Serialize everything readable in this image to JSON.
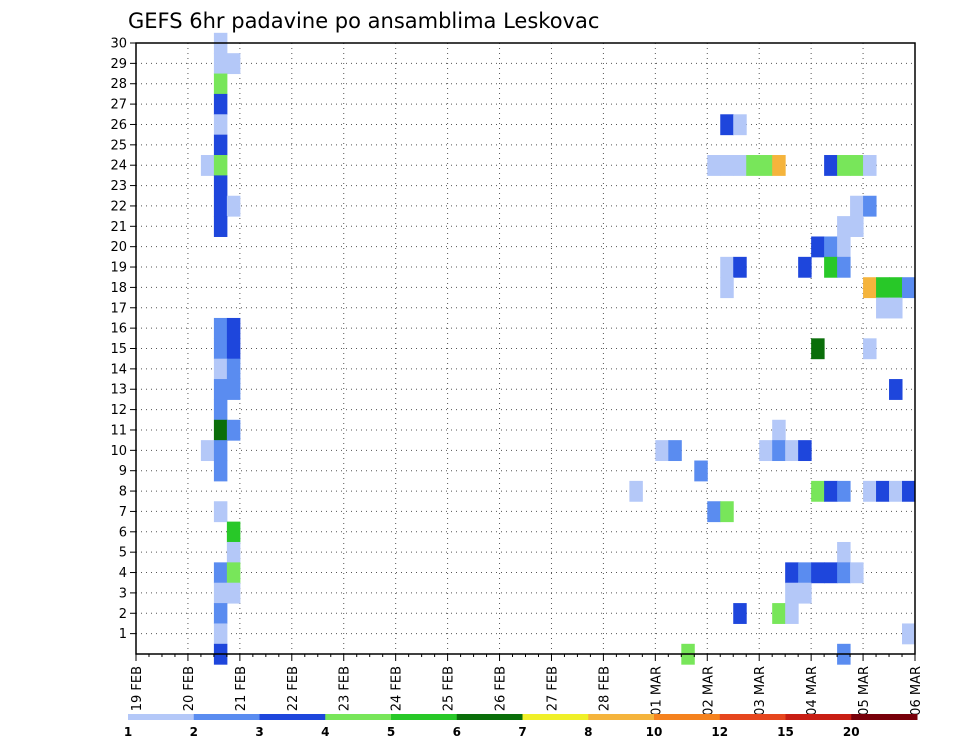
{
  "chart_data": {
    "type": "heatmap",
    "title": "GEFS 6hr padavine po ansamblima Leskovac",
    "x_tick_labels": [
      "19 FEB",
      "20 FEB",
      "21 FEB",
      "22 FEB",
      "23 FEB",
      "24 FEB",
      "25 FEB",
      "26 FEB",
      "27 FEB",
      "28 FEB",
      "01 MAR",
      "02 MAR",
      "03 MAR",
      "04 MAR",
      "05 MAR",
      "06 MAR"
    ],
    "y_tick_labels": [
      "1",
      "2",
      "3",
      "4",
      "5",
      "6",
      "7",
      "8",
      "9",
      "10",
      "11",
      "12",
      "13",
      "14",
      "15",
      "16",
      "17",
      "18",
      "19",
      "20",
      "21",
      "22",
      "23",
      "24",
      "25",
      "26",
      "27",
      "28",
      "29",
      "30"
    ],
    "xlim_steps": [
      0,
      60
    ],
    "ylim": [
      0,
      30
    ],
    "grid": true,
    "legend": {
      "position": "bottom",
      "labels": [
        "1",
        "2",
        "3",
        "4",
        "5",
        "6",
        "7",
        "8",
        "10",
        "12",
        "15",
        "20"
      ],
      "colors": [
        "#b4c8f8",
        "#5a8cf0",
        "#1e46dc",
        "#78e65a",
        "#28c828",
        "#0a6e0a",
        "#f0f028",
        "#f5b43c",
        "#f5821e",
        "#e6461e",
        "#c81e14",
        "#78000a"
      ]
    },
    "cells_note": "each cell: [member_y, time_step_6h_from_19FEB00, precip_class]",
    "cells": [
      [
        30,
        6.5,
        1
      ],
      [
        29,
        6.5,
        1
      ],
      [
        29,
        7.5,
        1
      ],
      [
        28,
        6.5,
        4
      ],
      [
        27,
        6.5,
        3
      ],
      [
        26,
        6.5,
        1
      ],
      [
        25,
        6.5,
        3
      ],
      [
        24,
        5.5,
        1
      ],
      [
        24,
        6.5,
        4
      ],
      [
        23,
        6.5,
        3
      ],
      [
        22,
        6.5,
        3
      ],
      [
        22,
        7.5,
        1
      ],
      [
        21,
        6.5,
        3
      ],
      [
        16,
        6.5,
        2
      ],
      [
        16,
        7.5,
        3
      ],
      [
        15,
        6.5,
        2
      ],
      [
        15,
        7.5,
        3
      ],
      [
        14,
        6.5,
        1
      ],
      [
        14,
        7.5,
        2
      ],
      [
        13,
        6.5,
        2
      ],
      [
        13,
        7.5,
        2
      ],
      [
        12,
        6.5,
        2
      ],
      [
        11,
        6.5,
        6
      ],
      [
        11,
        7.5,
        2
      ],
      [
        10,
        5.5,
        1
      ],
      [
        10,
        6.5,
        2
      ],
      [
        9,
        6.5,
        2
      ],
      [
        7,
        6.5,
        1
      ],
      [
        6,
        7.5,
        5
      ],
      [
        5,
        7.5,
        1
      ],
      [
        4,
        6.5,
        2
      ],
      [
        4,
        7.5,
        4
      ],
      [
        3,
        6.5,
        1
      ],
      [
        3,
        7.5,
        1
      ],
      [
        2,
        6.5,
        2
      ],
      [
        1,
        6.5,
        1
      ],
      [
        0,
        6.5,
        3
      ],
      [
        26,
        45.5,
        3
      ],
      [
        26,
        46.5,
        1
      ],
      [
        24,
        44.5,
        1
      ],
      [
        24,
        45.5,
        1
      ],
      [
        24,
        46.5,
        1
      ],
      [
        24,
        47.5,
        4
      ],
      [
        24,
        48.5,
        4
      ],
      [
        24,
        49.5,
        8
      ],
      [
        24,
        53.5,
        3
      ],
      [
        24,
        54.5,
        4
      ],
      [
        24,
        55.5,
        4
      ],
      [
        24,
        56.5,
        1
      ],
      [
        22,
        55.5,
        1
      ],
      [
        22,
        56.5,
        2
      ],
      [
        21,
        54.5,
        1
      ],
      [
        21,
        55.5,
        1
      ],
      [
        20,
        52.5,
        3
      ],
      [
        20,
        53.5,
        2
      ],
      [
        20,
        54.5,
        1
      ],
      [
        19,
        45.5,
        1
      ],
      [
        19,
        46.5,
        3
      ],
      [
        19,
        51.5,
        3
      ],
      [
        19,
        53.5,
        5
      ],
      [
        19,
        54.5,
        2
      ],
      [
        18,
        45.5,
        1
      ],
      [
        18,
        56.5,
        8
      ],
      [
        18,
        57.5,
        5
      ],
      [
        18,
        58.5,
        5
      ],
      [
        18,
        59.5,
        2
      ],
      [
        17,
        57.5,
        1
      ],
      [
        17,
        58.5,
        1
      ],
      [
        15,
        52.5,
        6
      ],
      [
        15,
        56.5,
        1
      ],
      [
        13,
        58.5,
        3
      ],
      [
        11,
        49.5,
        1
      ],
      [
        10,
        40.5,
        1
      ],
      [
        10,
        41.5,
        2
      ],
      [
        10,
        48.5,
        1
      ],
      [
        10,
        49.5,
        2
      ],
      [
        10,
        50.5,
        1
      ],
      [
        10,
        51.5,
        3
      ],
      [
        9,
        43.5,
        2
      ],
      [
        8,
        38.5,
        1
      ],
      [
        8,
        52.5,
        4
      ],
      [
        8,
        53.5,
        3
      ],
      [
        8,
        54.5,
        2
      ],
      [
        8,
        56.5,
        1
      ],
      [
        8,
        57.5,
        3
      ],
      [
        8,
        58.5,
        1
      ],
      [
        8,
        59.5,
        3
      ],
      [
        7,
        44.5,
        2
      ],
      [
        7,
        45.5,
        4
      ],
      [
        5,
        54.5,
        1
      ],
      [
        4,
        50.5,
        3
      ],
      [
        4,
        51.5,
        2
      ],
      [
        4,
        52.5,
        3
      ],
      [
        4,
        53.5,
        3
      ],
      [
        4,
        54.5,
        2
      ],
      [
        4,
        55.5,
        1
      ],
      [
        3,
        50.5,
        1
      ],
      [
        3,
        51.5,
        1
      ],
      [
        2,
        46.5,
        3
      ],
      [
        2,
        49.5,
        4
      ],
      [
        2,
        50.5,
        1
      ],
      [
        1,
        59.5,
        1
      ],
      [
        0,
        42.5,
        4
      ],
      [
        0,
        54.5,
        2
      ]
    ]
  }
}
